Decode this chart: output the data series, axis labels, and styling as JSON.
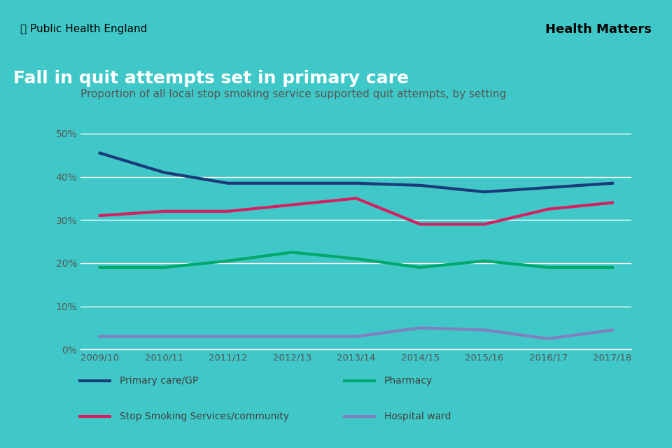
{
  "bg_color": "#40C8C8",
  "header_bg": "#ffffff",
  "title_bg": "#1a1a1a",
  "title_text": "Fall in quit attempts set in primary care",
  "subtitle": "Proportion of all local stop smoking service supported quit attempts, by setting",
  "years": [
    "2009/10",
    "2010/11",
    "2011/12",
    "2012/13",
    "2013/14",
    "2014/15",
    "2015/16",
    "2016/17",
    "2017/18"
  ],
  "primary_care": [
    45.5,
    41.0,
    38.5,
    38.5,
    38.5,
    38.0,
    36.5,
    37.5,
    38.5
  ],
  "stop_smoking": [
    31.0,
    32.0,
    32.0,
    33.5,
    35.0,
    29.0,
    29.0,
    32.5,
    34.0
  ],
  "pharmacy": [
    19.0,
    19.0,
    20.5,
    22.5,
    21.0,
    19.0,
    20.5,
    19.0,
    19.0
  ],
  "hospital_ward": [
    3.0,
    3.0,
    3.0,
    3.0,
    3.0,
    5.0,
    4.5,
    2.5,
    4.5
  ],
  "primary_care_color": "#1a3a7a",
  "stop_smoking_color": "#d42060",
  "pharmacy_color": "#00a86b",
  "hospital_ward_color": "#8080c0",
  "grid_color": "#ffffff",
  "axis_label_color": "#555555",
  "text_color": "#555555",
  "legend_text_color": "#404040",
  "ylim": [
    0,
    55
  ],
  "yticks": [
    0,
    10,
    20,
    30,
    40,
    50
  ],
  "line_width": 2.5
}
